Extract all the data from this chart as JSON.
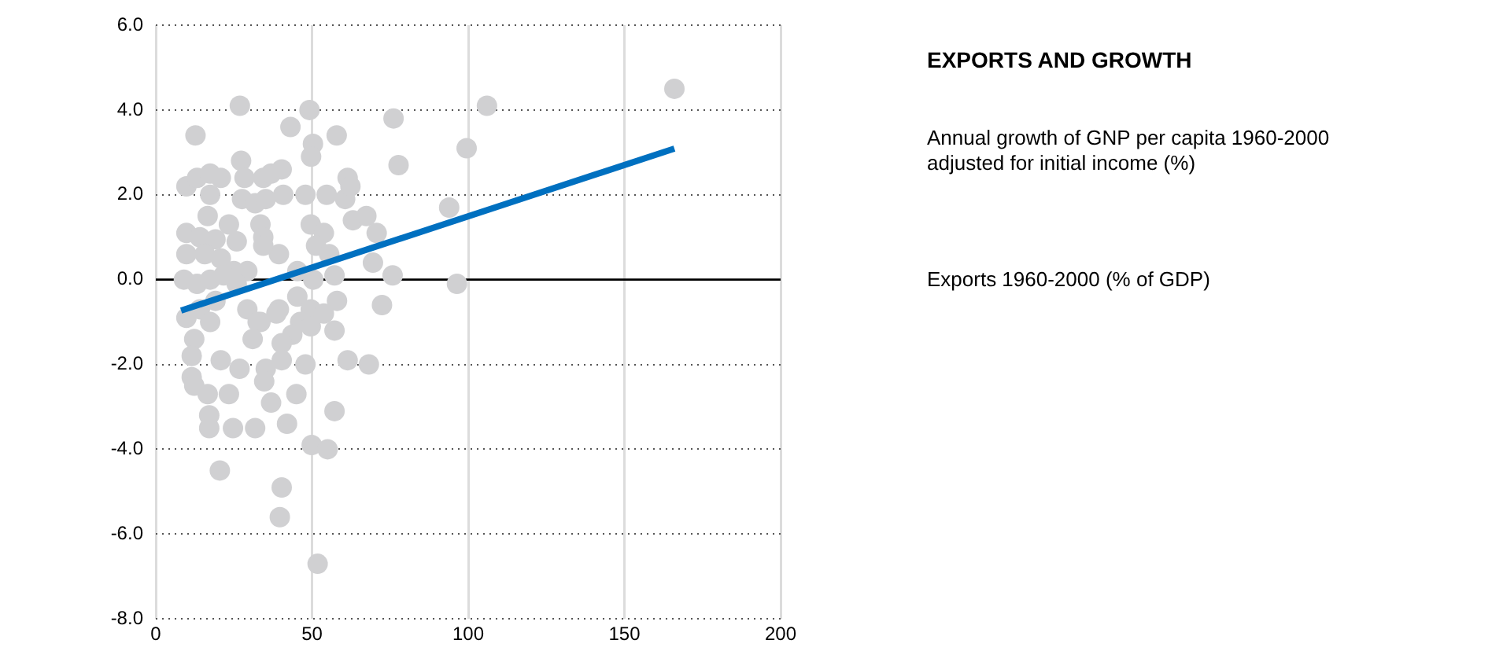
{
  "chart_data": {
    "type": "scatter",
    "title": "EXPORTS AND GROWTH",
    "annotations": [
      "Annual growth of GNP per capita 1960-2000 adjusted for initial income (%)",
      "Exports 1960-2000 (% of GDP)"
    ],
    "xlim": [
      0,
      200
    ],
    "xticks": [
      0,
      50,
      100,
      150,
      200
    ],
    "ylim": [
      -8,
      6
    ],
    "yticks": [
      {
        "value": -8,
        "label": "-8.0"
      },
      {
        "value": -6,
        "label": "-6.0"
      },
      {
        "value": -4,
        "label": "-4.0"
      },
      {
        "value": -2,
        "label": "-2.0"
      },
      {
        "value": 0,
        "label": "0.0"
      },
      {
        "value": 2,
        "label": "2.0"
      },
      {
        "value": 4,
        "label": "4.0"
      },
      {
        "value": 6,
        "label": "6.0"
      }
    ],
    "grid": true,
    "legend": false,
    "marker": "circle",
    "ref_lines": [
      {
        "axis": "y",
        "value": 0,
        "color": "#000000"
      }
    ],
    "series": [
      {
        "color": "#d0d0d2",
        "x": [
          12.7,
          26.9,
          49.2,
          43.1,
          57.9,
          50.3,
          49.7,
          76.1,
          77.7,
          99.5,
          106,
          93.9,
          96.4,
          166,
          9.8,
          13.2,
          17.4,
          20.8,
          17.4,
          27.3,
          28.4,
          34.4,
          36.9,
          40.3,
          40.8,
          27.6,
          31.8,
          35.2,
          16.6,
          23.4,
          9.8,
          14.1,
          19.1,
          25.9,
          33.5,
          34.4,
          39.4,
          15.7,
          20.8,
          9.8,
          29.3,
          25,
          34.4,
          9,
          13.2,
          17.4,
          21.7,
          47.9,
          54.7,
          60.6,
          61.4,
          62.3,
          63.1,
          67.4,
          70.7,
          49.6,
          53.8,
          51.3,
          55.5,
          57.2,
          50.4,
          45.3,
          69.5,
          75.8,
          72.4,
          58,
          45.3,
          49.6,
          39.4,
          29.3,
          25.9,
          19.1,
          14.1,
          9.8,
          17.4,
          33.5,
          38.6,
          46.2,
          53.8,
          57.2,
          49.6,
          43.7,
          12.3,
          32.6,
          40.3,
          11.5,
          20.8,
          26.8,
          31,
          35.2,
          40.3,
          47.9,
          61.4,
          68.2,
          11.5,
          16.6,
          23.4,
          12.3,
          34.7,
          36.9,
          45,
          17.1,
          17.1,
          24.7,
          31.8,
          42,
          57.2,
          49.9,
          55,
          20.5,
          40.3,
          39.7,
          51.8
        ],
        "values": [
          3.4,
          4.1,
          4.0,
          3.6,
          3.4,
          3.2,
          2.9,
          3.8,
          2.7,
          3.1,
          4.1,
          1.7,
          -0.1,
          4.5,
          2.2,
          2.4,
          2.5,
          2.4,
          2.0,
          2.8,
          2.4,
          2.4,
          2.5,
          2.6,
          2.0,
          1.9,
          1.8,
          1.9,
          1.5,
          1.3,
          1.1,
          1.0,
          0.95,
          0.9,
          1.3,
          1.0,
          0.6,
          0.6,
          0.5,
          0.6,
          0.2,
          0.2,
          0.8,
          0.0,
          -0.1,
          0.0,
          0.1,
          2.0,
          2.0,
          1.9,
          2.4,
          2.2,
          1.4,
          1.5,
          1.1,
          1.3,
          1.1,
          0.8,
          0.6,
          0.1,
          0.0,
          0.2,
          0.4,
          0.1,
          -0.6,
          -0.5,
          -0.4,
          -0.7,
          -0.7,
          -0.7,
          -0.1,
          -0.5,
          -0.7,
          -0.9,
          -1.0,
          -1.0,
          -0.8,
          -1.0,
          -0.8,
          -1.2,
          -1.1,
          -1.3,
          -1.4,
          -1.0,
          -1.5,
          -1.8,
          -1.9,
          -2.1,
          -1.4,
          -2.1,
          -1.9,
          -2.0,
          -1.9,
          -2.0,
          -2.3,
          -2.7,
          -2.7,
          -2.5,
          -2.4,
          -2.9,
          -2.7,
          -3.2,
          -3.5,
          -3.5,
          -3.5,
          -3.4,
          -3.1,
          -3.9,
          -4.0,
          -4.5,
          -4.9,
          -5.6,
          -6.7
        ]
      },
      {
        "type": "line",
        "color": "#0070c0",
        "marker": "none",
        "x": [
          8.1,
          166
        ],
        "values": [
          -0.73,
          3.09
        ]
      }
    ]
  }
}
